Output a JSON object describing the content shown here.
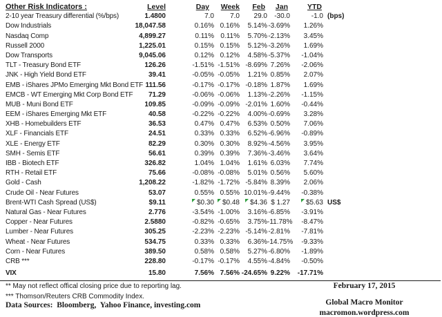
{
  "title": "Other Risk Indicators :",
  "columns": {
    "level": "Level",
    "day": "Day",
    "week": "Week",
    "feb": "Feb",
    "jan": "Jan",
    "ytd": "YTD"
  },
  "rows": [
    {
      "name": "2-10 year Treasury differential (%/bps)",
      "level": "1.4800",
      "day": "7.0",
      "week": "7.0",
      "feb": "29.0",
      "jan": "-30.0",
      "ytd": "-1.0",
      "suffix": "(bps)"
    },
    {
      "name": "Dow Industrials",
      "level": "18,047.58",
      "day": "0.16%",
      "week": "0.16%",
      "feb": "5.14%",
      "jan": "-3.69%",
      "ytd": "1.26%"
    },
    {
      "name": "Nasdaq Comp",
      "level": "4,899.27",
      "day": "0.11%",
      "week": "0.11%",
      "feb": "5.70%",
      "jan": "-2.13%",
      "ytd": "3.45%"
    },
    {
      "name": "Russell 2000",
      "level": "1,225.01",
      "day": "0.15%",
      "week": "0.15%",
      "feb": "5.12%",
      "jan": "-3.26%",
      "ytd": "1.69%"
    },
    {
      "name": "Dow Transports",
      "level": "9,045.06",
      "day": "0.12%",
      "week": "0.12%",
      "feb": "4.58%",
      "jan": "-5.37%",
      "ytd": "-1.04%"
    },
    {
      "name": "TLT - Treasury Bond ETF",
      "level": "126.26",
      "day": "-1.51%",
      "week": "-1.51%",
      "feb": "-8.69%",
      "jan": "7.26%",
      "ytd": "-2.06%"
    },
    {
      "name": "JNK - High Yield Bond ETF",
      "level": "39.41",
      "day": "-0.05%",
      "week": "-0.05%",
      "feb": "1.21%",
      "jan": "0.85%",
      "ytd": "2.07%"
    },
    {
      "name": "EMB - iShares JPMo Emerging Mkt Bond ETF",
      "level": "111.56",
      "day": "-0.17%",
      "week": "-0.17%",
      "feb": "-0.18%",
      "jan": "1.87%",
      "ytd": "1.69%"
    },
    {
      "name": "EMCB - WT Emerging Mkt Corp Bond ETF",
      "level": "71.29",
      "day": "-0.06%",
      "week": "-0.06%",
      "feb": "1.13%",
      "jan": "-2.26%",
      "ytd": "-1.15%"
    },
    {
      "name": "MUB - Muni Bond ETF",
      "level": "109.85",
      "day": "-0.09%",
      "week": "-0.09%",
      "feb": "-2.01%",
      "jan": "1.60%",
      "ytd": "-0.44%"
    },
    {
      "name": "EEM - iShares Emerging Mkt ETF",
      "level": "40.58",
      "day": "-0.22%",
      "week": "-0.22%",
      "feb": "4.00%",
      "jan": "-0.69%",
      "ytd": "3.28%"
    },
    {
      "name": "XHB - Homebuilders ETF",
      "level": "36.53",
      "day": "0.47%",
      "week": "0.47%",
      "feb": "6.53%",
      "jan": "0.50%",
      "ytd": "7.06%"
    },
    {
      "name": "XLF - Financials ETF",
      "level": "24.51",
      "day": "0.33%",
      "week": "0.33%",
      "feb": "6.52%",
      "jan": "-6.96%",
      "ytd": "-0.89%"
    },
    {
      "name": "XLE - Energy ETF",
      "level": "82.29",
      "day": "0.30%",
      "week": "0.30%",
      "feb": "8.92%",
      "jan": "-4.56%",
      "ytd": "3.95%"
    },
    {
      "name": "SMH - Semis ETF",
      "level": "56.61",
      "day": "0.39%",
      "week": "0.39%",
      "feb": "7.36%",
      "jan": "-3.46%",
      "ytd": "3.64%"
    },
    {
      "name": "IBB - Biotech ETF",
      "level": "326.82",
      "day": "1.04%",
      "week": "1.04%",
      "feb": "1.61%",
      "jan": "6.03%",
      "ytd": "7.74%"
    },
    {
      "name": "RTH - Retail ETF",
      "level": "75.66",
      "day": "-0.08%",
      "week": "-0.08%",
      "feb": "5.01%",
      "jan": "0.56%",
      "ytd": "5.60%"
    },
    {
      "name": "Gold - Cash",
      "level": "1,208.22",
      "day": "-1.82%",
      "week": "-1.72%",
      "feb": "-5.84%",
      "jan": "8.39%",
      "ytd": "2.06%"
    },
    {
      "name": "Crude Oil - Near Futures",
      "level": "53.07",
      "day": "0.55%",
      "week": "0.55%",
      "feb": "10.01%",
      "jan": "-9.44%",
      "ytd": "-0.38%"
    },
    {
      "name": "Brent-WTI Cash Spread (US$)",
      "level": "$9.11",
      "day": "$0.30",
      "week": "$0.48",
      "feb": "$4.36",
      "jan": "$ 1.27",
      "ytd": "$5.63",
      "suffix": "US$",
      "flags": [
        "day",
        "week",
        "feb",
        "ytd"
      ]
    },
    {
      "name": "Natural Gas - Near Futures",
      "level": "2.776",
      "day": "-3.54%",
      "week": "-1.00%",
      "feb": "3.16%",
      "jan": "-6.85%",
      "ytd": "-3.91%"
    },
    {
      "name": "Copper - Near Futures",
      "level": "2.5880",
      "day": "-0.82%",
      "week": "-0.65%",
      "feb": "3.75%",
      "jan": "-11.78%",
      "ytd": "-8.47%"
    },
    {
      "name": "Lumber - Near Futures",
      "level": "305.25",
      "day": "-2.23%",
      "week": "-2.23%",
      "feb": "-5.14%",
      "jan": "-2.81%",
      "ytd": "-7.81%"
    },
    {
      "name": "Wheat - Near Futures",
      "level": "534.75",
      "day": "0.33%",
      "week": "0.33%",
      "feb": "6.36%",
      "jan": "-14.75%",
      "ytd": "-9.33%"
    },
    {
      "name": "Corn - Near Futures",
      "level": "389.50",
      "day": "0.58%",
      "week": "0.58%",
      "feb": "5.27%",
      "jan": "-6.80%",
      "ytd": "-1.89%"
    },
    {
      "name": "CRB ***",
      "level": "228.80",
      "day": "-0.17%",
      "week": "-0.17%",
      "feb": "4.55%",
      "jan": "-4.84%",
      "ytd": "-0.50%"
    },
    {
      "name": "VIX",
      "level": "15.80",
      "day": "7.56%",
      "week": "7.56%",
      "feb": "-24.65%",
      "jan": "9.22%",
      "ytd": "-17.71%",
      "bold": true,
      "gap": true
    }
  ],
  "footnotes": {
    "note2": "** May not reflect offical closing price due to reporting lag.",
    "note3": "*** Thomson/Reuters CRB Commodity Index.",
    "sources": "Data Sources:  Bloomberg,  Yahoo Finance, investing.com"
  },
  "footer": {
    "date": "February 17, 2015",
    "brand": "Global Macro Monitor",
    "url": "macromon.wordpress.com"
  },
  "colors": {
    "flag_green": "#2f9e3f",
    "text": "#1b1b1b"
  }
}
